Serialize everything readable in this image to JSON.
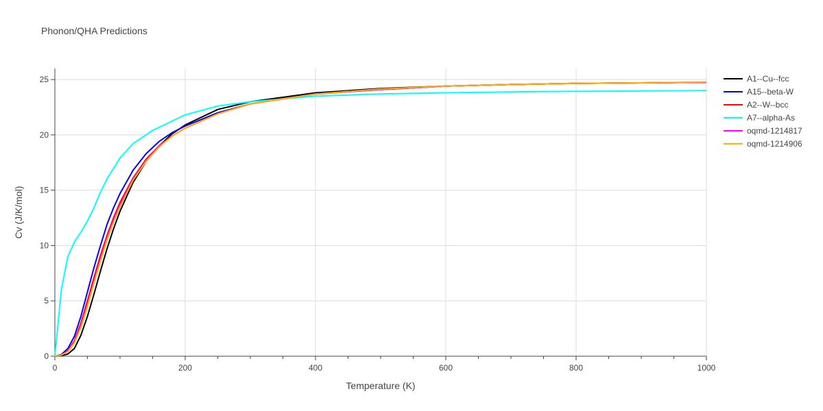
{
  "chart_data": {
    "type": "line",
    "title": "Phonon/QHA Predictions",
    "xlabel": "Temperature (K)",
    "ylabel": "Cv (J/K/mol)",
    "xlim": [
      0,
      1000
    ],
    "ylim": [
      0,
      26
    ],
    "xticks": [
      0,
      200,
      400,
      600,
      800,
      1000
    ],
    "yticks": [
      0,
      5,
      10,
      15,
      20,
      25
    ],
    "xminor_step": 50,
    "grid": true,
    "legend_position": "top-right",
    "series": [
      {
        "name": "A1--Cu--fcc",
        "color": "#000000",
        "x": [
          0,
          10,
          20,
          30,
          40,
          50,
          60,
          70,
          80,
          90,
          100,
          120,
          140,
          160,
          180,
          200,
          250,
          300,
          400,
          500,
          600,
          700,
          800,
          900,
          1000
        ],
        "y": [
          0,
          0.05,
          0.2,
          0.7,
          1.9,
          3.6,
          5.6,
          7.7,
          9.7,
          11.5,
          13.1,
          15.7,
          17.6,
          19.0,
          20.1,
          20.9,
          22.3,
          23.0,
          23.8,
          24.2,
          24.4,
          24.55,
          24.65,
          24.7,
          24.75
        ]
      },
      {
        "name": "A15--beta-W",
        "color": "#0000ff",
        "x": [
          0,
          10,
          20,
          30,
          40,
          50,
          60,
          70,
          80,
          90,
          100,
          120,
          140,
          160,
          180,
          200,
          250,
          300,
          400,
          500,
          600,
          700,
          800,
          900,
          1000
        ],
        "y": [
          0,
          0.15,
          0.7,
          1.8,
          3.6,
          5.8,
          8.0,
          10.0,
          11.9,
          13.4,
          14.7,
          16.8,
          18.3,
          19.4,
          20.2,
          20.8,
          22.0,
          22.8,
          23.7,
          24.1,
          24.4,
          24.55,
          24.65,
          24.7,
          24.75
        ]
      },
      {
        "name": "A2--W--bcc",
        "color": "#ff0000",
        "x": [
          0,
          10,
          20,
          30,
          40,
          50,
          60,
          70,
          80,
          90,
          100,
          120,
          140,
          160,
          180,
          200,
          250,
          300,
          400,
          500,
          600,
          700,
          800,
          900,
          1000
        ],
        "y": [
          0,
          0.1,
          0.5,
          1.4,
          3.0,
          5.0,
          7.1,
          9.1,
          10.9,
          12.5,
          13.9,
          16.1,
          17.8,
          19.0,
          19.9,
          20.6,
          21.9,
          22.8,
          23.7,
          24.1,
          24.4,
          24.55,
          24.65,
          24.7,
          24.75
        ]
      },
      {
        "name": "A7--alpha-As",
        "color": "#00ffff",
        "x": [
          0,
          5,
          10,
          20,
          30,
          40,
          50,
          60,
          70,
          80,
          100,
          120,
          150,
          200,
          250,
          300,
          400,
          500,
          600,
          700,
          800,
          900,
          1000
        ],
        "y": [
          0,
          3.0,
          6.0,
          9.0,
          10.3,
          11.2,
          12.2,
          13.4,
          14.8,
          16.0,
          17.9,
          19.2,
          20.4,
          21.8,
          22.6,
          23.0,
          23.5,
          23.7,
          23.8,
          23.88,
          23.93,
          23.97,
          24.0
        ]
      },
      {
        "name": "oqmd-1214817",
        "color": "#ff00ff",
        "x": [
          0,
          10,
          20,
          30,
          40,
          50,
          60,
          70,
          80,
          90,
          100,
          120,
          140,
          160,
          180,
          200,
          250,
          300,
          400,
          500,
          600,
          700,
          800,
          900,
          1000
        ],
        "y": [
          0,
          0.1,
          0.45,
          1.3,
          2.8,
          4.7,
          6.8,
          8.8,
          10.7,
          12.3,
          13.7,
          16.0,
          17.7,
          19.0,
          19.9,
          20.6,
          21.9,
          22.8,
          23.7,
          24.1,
          24.4,
          24.55,
          24.65,
          24.7,
          24.75
        ]
      },
      {
        "name": "oqmd-1214906",
        "color": "#ffb000",
        "x": [
          0,
          10,
          20,
          30,
          40,
          50,
          60,
          70,
          80,
          90,
          100,
          120,
          140,
          160,
          180,
          200,
          250,
          300,
          400,
          500,
          600,
          700,
          800,
          900,
          1000
        ],
        "y": [
          0,
          0.1,
          0.4,
          1.2,
          2.6,
          4.5,
          6.6,
          8.6,
          10.5,
          12.1,
          13.5,
          15.9,
          17.6,
          18.9,
          19.9,
          20.6,
          21.9,
          22.8,
          23.7,
          24.15,
          24.4,
          24.55,
          24.65,
          24.7,
          24.78
        ]
      }
    ]
  }
}
